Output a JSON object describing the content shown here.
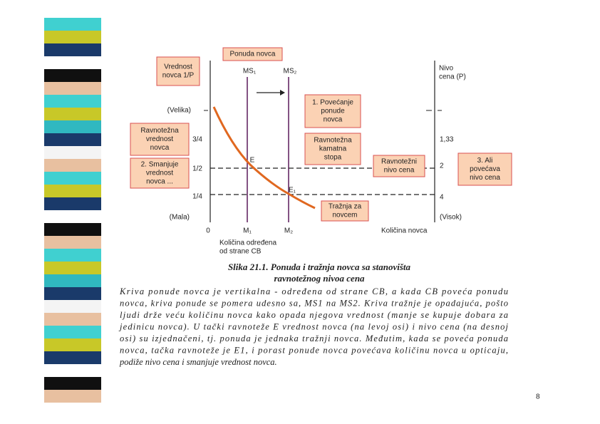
{
  "diagram": {
    "boxes": [
      {
        "lines": [
          "Vrednost",
          "novca 1/P"
        ]
      },
      {
        "lines": [
          "Ponuda novca"
        ]
      },
      {
        "lines": [
          "1. Povećanje",
          "ponude",
          "novca"
        ]
      },
      {
        "lines": [
          "Ravnotežna",
          "vrednost",
          "novca"
        ]
      },
      {
        "lines": [
          "2. Smanjuje",
          "vrednost",
          "novca ..."
        ]
      },
      {
        "lines": [
          "Ravnotežna",
          "kamatna",
          "stopa"
        ]
      },
      {
        "lines": [
          "Ravnotežni",
          "nivo cena"
        ]
      },
      {
        "lines": [
          "3. Ali",
          "povećava",
          "nivo cena"
        ]
      },
      {
        "lines": [
          "Tražnja za",
          "novcem"
        ]
      }
    ],
    "left_axis_labels": [
      "(Velika)",
      "3/4",
      "1/2",
      "1/4",
      "(Mala)"
    ],
    "right_axis_title": [
      "Nivo",
      "cena (P)"
    ],
    "right_axis_labels": [
      "1,33",
      "2",
      "4",
      "(Visok)"
    ],
    "supply_labels": [
      "MS₁",
      "MS₂"
    ],
    "points": [
      "E",
      "E₁"
    ],
    "x_labels": [
      "0",
      "M₁",
      "M₂",
      "Količina novca"
    ],
    "x_note": [
      "Količina određena",
      "od strane CB"
    ]
  },
  "caption": {
    "title": [
      "Slika 21.1. Ponuda i tražnja novca sa stanovišta",
      "ravnotežnog nivoa cena"
    ],
    "paragraph": [
      "Kriva ponude novca je vertikalna - određena od strane CB, a kada CB poveća ponudu",
      "novca, kriva ponude se pomera udesno sa, MS1 na MS2. Kriva tražnje je opadajuća, pošto",
      "ljudi drže veću količinu novca kako opada njegova vrednost (manje se kupuje dobara za",
      "jedinicu novca). U tački ravnoteže E vrednost novca (na levoj osi) i nivo cena (na desnoj",
      "osi) su izjednačeni, tj. ponuda je jednaka tražnji novca. Međutim, kada se poveća ponuda",
      "novca, tačka ravnoteže je E1, i porast ponude novca povećava količinu novca u opticaju,",
      "podiže nivo cena i smanjuje vrednost novca."
    ]
  },
  "page_number": "8"
}
